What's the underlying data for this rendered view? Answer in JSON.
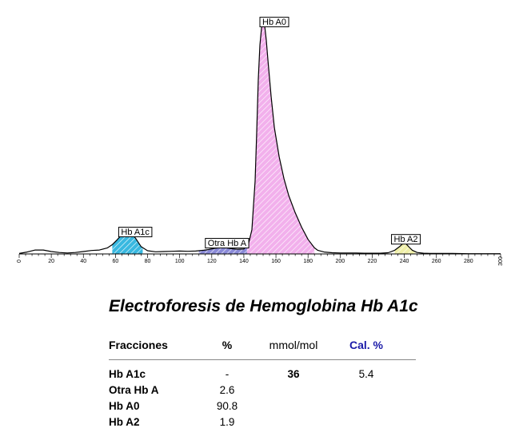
{
  "chart_data": {
    "type": "area",
    "title": "",
    "xlabel": "",
    "ylabel": "",
    "xlim": [
      0,
      300
    ],
    "ylim": [
      0,
      100
    ],
    "x_ticks": [
      0,
      20,
      40,
      60,
      80,
      100,
      120,
      140,
      160,
      180,
      200,
      220,
      240,
      260,
      280,
      300
    ],
    "grid": false,
    "series": [
      {
        "x": [
          0,
          5,
          10,
          15,
          20,
          25,
          30,
          35,
          40,
          45,
          50,
          55,
          58,
          61,
          64,
          67,
          70,
          73,
          76,
          80,
          85,
          90,
          95,
          100,
          105,
          110,
          115,
          118,
          121,
          124,
          127,
          130,
          133,
          136,
          140,
          143,
          145,
          147,
          148,
          149,
          150,
          151,
          152,
          153,
          154,
          155,
          157,
          159,
          162,
          165,
          168,
          172,
          176,
          180,
          184,
          186,
          190,
          195,
          200,
          205,
          210,
          215,
          220,
          225,
          230,
          234,
          237,
          239,
          240,
          241,
          243,
          245,
          248,
          252,
          256,
          260,
          270,
          280,
          290,
          300
        ],
        "y": [
          0.2,
          0.8,
          1.6,
          1.6,
          1.0,
          0.6,
          0.4,
          0.6,
          1.0,
          1.4,
          1.6,
          2.5,
          3.8,
          5.8,
          8.0,
          9.1,
          8.6,
          6.0,
          3.0,
          1.3,
          0.9,
          1.0,
          1.1,
          1.2,
          1.1,
          1.2,
          1.5,
          1.8,
          2.2,
          2.5,
          2.6,
          2.4,
          2.1,
          1.9,
          2.0,
          4.5,
          10.0,
          30.0,
          50.0,
          72.0,
          86.0,
          93.0,
          96.0,
          94.0,
          88.0,
          80.0,
          65.0,
          52.0,
          40.0,
          31.0,
          24.0,
          17.0,
          11.0,
          6.0,
          2.5,
          1.5,
          0.8,
          0.5,
          0.4,
          0.4,
          0.4,
          0.3,
          0.3,
          0.3,
          0.5,
          1.5,
          3.0,
          4.2,
          4.5,
          4.2,
          2.8,
          1.5,
          0.6,
          0.3,
          0.2,
          0.2,
          0.2,
          0.1,
          0.1,
          0.1
        ]
      }
    ],
    "fractions": [
      {
        "label": "Hb A1c",
        "start": 58,
        "end": 77,
        "apex": 67,
        "color": "#38b8e0",
        "label_x": 62,
        "label_y": 11.0
      },
      {
        "label": "Otra Hb A",
        "start": 112,
        "end": 142,
        "apex": 127,
        "color": "#8a8ad8",
        "label_x": 116,
        "label_y": 6.4
      },
      {
        "label": "Hb A0",
        "start": 142,
        "end": 184,
        "apex": 152,
        "color": "#f2b0ec",
        "label_x": 150,
        "label_y": 97.5
      },
      {
        "label": "Hb A2",
        "start": 234,
        "end": 247,
        "apex": 240,
        "color": "#f0f0a8",
        "label_x": 232,
        "label_y": 8.0
      }
    ]
  },
  "report": {
    "title": "Electroforesis de Hemoglobina Hb A1c",
    "headers": {
      "name": "Fracciones",
      "pct": "%",
      "mmol": "mmol/mol",
      "cal": "Cal. %"
    },
    "rows": [
      {
        "name": "Hb A1c",
        "pct": "-",
        "mmol": "36",
        "cal": "5.4"
      },
      {
        "name": "Otra Hb A",
        "pct": "2.6",
        "mmol": "",
        "cal": ""
      },
      {
        "name": "Hb A0",
        "pct": "90.8",
        "mmol": "",
        "cal": ""
      },
      {
        "name": "Hb A2",
        "pct": "1.9",
        "mmol": "",
        "cal": ""
      }
    ]
  }
}
